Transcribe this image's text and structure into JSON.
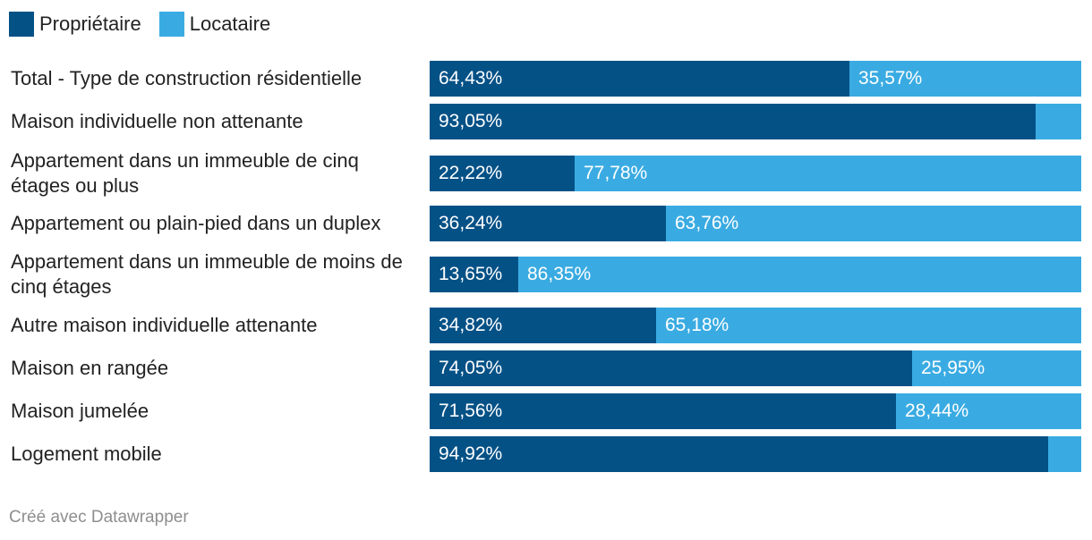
{
  "colors": {
    "owner": "#045186",
    "tenant": "#3aabe2"
  },
  "chart_data": {
    "type": "bar",
    "orientation": "horizontal",
    "stacked": true,
    "legend_position": "top-left",
    "series": [
      {
        "name": "Propriétaire",
        "values": [
          64.43,
          93.05,
          22.22,
          36.24,
          13.65,
          34.82,
          74.05,
          71.56,
          94.92
        ],
        "labels": [
          "64,43%",
          "93,05%",
          "22,22%",
          "36,24%",
          "13,65%",
          "34,82%",
          "74,05%",
          "71,56%",
          "94,92%"
        ]
      },
      {
        "name": "Locataire",
        "values": [
          35.57,
          6.95,
          77.78,
          63.76,
          86.35,
          65.18,
          25.95,
          28.44,
          5.08
        ],
        "labels": [
          "35,57%",
          "",
          "77,78%",
          "63,76%",
          "86,35%",
          "65,18%",
          "25,95%",
          "28,44%",
          ""
        ]
      }
    ],
    "categories": [
      "Total - Type de construction résidentielle",
      "Maison individuelle non attenante",
      "Appartement dans un immeuble de cinq étages ou plus",
      "Appartement ou plain-pied dans un duplex",
      "Appartement dans un immeuble de moins de cinq étages",
      "Autre maison individuelle attenante",
      "Maison en rangée",
      "Maison jumelée",
      "Logement mobile"
    ],
    "xlim": [
      0,
      100
    ],
    "grid": false
  },
  "footer": {
    "credit": "Créé avec Datawrapper"
  }
}
